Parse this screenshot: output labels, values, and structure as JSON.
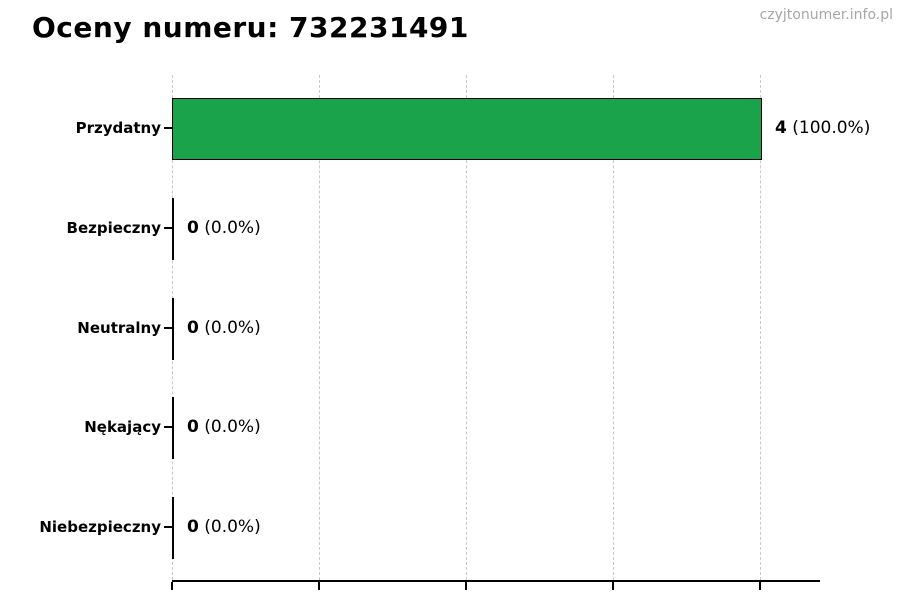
{
  "page": {
    "watermark": "czyjtonumer.info.pl"
  },
  "chart_data": {
    "type": "bar",
    "orientation": "horizontal",
    "title": "Oceny numeru: 732231491",
    "categories": [
      "Przydatny",
      "Bezpieczny",
      "Neutralny",
      "Nękający",
      "Niebezpieczny"
    ],
    "values": [
      4,
      0,
      0,
      0,
      0
    ],
    "percent_labels": [
      "(100.0%)",
      "(0.0%)",
      "(0.0%)",
      "(0.0%)",
      "(0.0%)"
    ],
    "value_labels": [
      "4 (100.0%)",
      "0 (0.0%)",
      "0 (0.0%)",
      "0 (0.0%)",
      "0 (0.0%)"
    ],
    "x_ticks": [
      0,
      1,
      2,
      3,
      4
    ],
    "xlim": [
      0,
      4.41
    ],
    "x_tick_labels_visible": false,
    "grid": "vertical-dashed",
    "legend": "none",
    "bar_color": "#1aa34a",
    "bar_edge_color": "#000000",
    "grid_color": "#c9c9c9"
  }
}
